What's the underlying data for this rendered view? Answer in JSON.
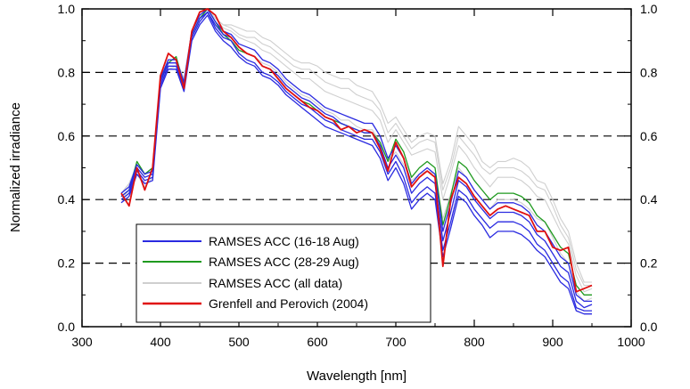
{
  "chart_data": {
    "type": "line",
    "title": "",
    "xlabel": "Wavelength [nm]",
    "ylabel": "Normalized irradiance",
    "xlim": [
      300,
      1000
    ],
    "ylim": [
      0.0,
      1.0
    ],
    "x_ticks": [
      "300",
      "400",
      "500",
      "600",
      "700",
      "800",
      "900",
      "1000"
    ],
    "y_ticks": [
      "0.0",
      "0.2",
      "0.4",
      "0.6",
      "0.8",
      "1.0"
    ],
    "right_axis_ticks": [
      "0.0",
      "0.2",
      "0.4",
      "0.6",
      "0.8",
      "1.0"
    ],
    "grid": "dashed horizontal at 0.2, 0.4, 0.6, 0.8",
    "legend_position": "bottom-left",
    "colors": {
      "blue": "#2a2ae0",
      "green": "#1f9a1f",
      "gray": "#cfcfcf",
      "red": "#e01010"
    },
    "legend": [
      {
        "label": "RAMSES ACC (16-18 Aug)",
        "color": "#2a2ae0"
      },
      {
        "label": "RAMSES ACC (28-29 Aug)",
        "color": "#1f9a1f"
      },
      {
        "label": "RAMSES ACC (all data)",
        "color": "#cfcfcf"
      },
      {
        "label": "Grenfell and Perovich (2004)",
        "color": "#e01010"
      }
    ],
    "x": [
      350,
      360,
      370,
      380,
      390,
      400,
      410,
      420,
      430,
      440,
      450,
      460,
      470,
      480,
      490,
      500,
      510,
      520,
      530,
      540,
      550,
      560,
      570,
      580,
      590,
      600,
      610,
      620,
      630,
      640,
      650,
      660,
      670,
      680,
      690,
      700,
      710,
      720,
      730,
      740,
      750,
      760,
      770,
      780,
      790,
      800,
      810,
      820,
      830,
      840,
      850,
      860,
      870,
      880,
      890,
      900,
      910,
      920,
      930,
      940,
      950
    ],
    "series": [
      {
        "group": "gray",
        "values": [
          0.42,
          0.45,
          0.51,
          0.48,
          0.5,
          0.78,
          0.84,
          0.84,
          0.78,
          0.93,
          0.98,
          1.0,
          0.97,
          0.95,
          0.95,
          0.94,
          0.93,
          0.93,
          0.91,
          0.9,
          0.88,
          0.86,
          0.84,
          0.83,
          0.83,
          0.82,
          0.8,
          0.79,
          0.78,
          0.78,
          0.76,
          0.75,
          0.74,
          0.7,
          0.64,
          0.66,
          0.62,
          0.58,
          0.6,
          0.61,
          0.6,
          0.45,
          0.52,
          0.63,
          0.6,
          0.57,
          0.52,
          0.5,
          0.52,
          0.52,
          0.53,
          0.52,
          0.5,
          0.46,
          0.45,
          0.4,
          0.34,
          0.3,
          0.2,
          0.14,
          0.14
        ]
      },
      {
        "group": "gray",
        "values": [
          0.42,
          0.45,
          0.51,
          0.48,
          0.5,
          0.78,
          0.84,
          0.84,
          0.78,
          0.93,
          0.98,
          1.0,
          0.97,
          0.94,
          0.93,
          0.91,
          0.9,
          0.89,
          0.87,
          0.86,
          0.84,
          0.82,
          0.8,
          0.78,
          0.78,
          0.76,
          0.74,
          0.73,
          0.72,
          0.71,
          0.7,
          0.69,
          0.68,
          0.65,
          0.58,
          0.62,
          0.58,
          0.54,
          0.55,
          0.56,
          0.55,
          0.4,
          0.48,
          0.57,
          0.54,
          0.5,
          0.47,
          0.44,
          0.47,
          0.47,
          0.47,
          0.46,
          0.44,
          0.41,
          0.4,
          0.35,
          0.3,
          0.26,
          0.16,
          0.11,
          0.12
        ]
      },
      {
        "group": "gray",
        "values": [
          0.42,
          0.45,
          0.51,
          0.48,
          0.5,
          0.78,
          0.84,
          0.84,
          0.78,
          0.93,
          0.98,
          1.0,
          0.97,
          0.95,
          0.94,
          0.92,
          0.91,
          0.91,
          0.89,
          0.88,
          0.86,
          0.84,
          0.82,
          0.81,
          0.81,
          0.79,
          0.77,
          0.76,
          0.75,
          0.75,
          0.73,
          0.72,
          0.71,
          0.68,
          0.61,
          0.64,
          0.6,
          0.56,
          0.58,
          0.59,
          0.58,
          0.43,
          0.5,
          0.6,
          0.57,
          0.54,
          0.5,
          0.48,
          0.5,
          0.5,
          0.5,
          0.49,
          0.47,
          0.44,
          0.43,
          0.38,
          0.32,
          0.28,
          0.18,
          0.13,
          0.13
        ]
      },
      {
        "group": "gray",
        "values": [
          0.4,
          0.43,
          0.48,
          0.44,
          0.47,
          0.76,
          0.81,
          0.82,
          0.76,
          0.92,
          0.97,
          0.99,
          0.95,
          0.92,
          0.9,
          0.88,
          0.86,
          0.85,
          0.83,
          0.82,
          0.8,
          0.77,
          0.75,
          0.73,
          0.72,
          0.7,
          0.68,
          0.67,
          0.65,
          0.65,
          0.63,
          0.62,
          0.62,
          0.58,
          0.52,
          0.55,
          0.51,
          0.46,
          0.48,
          0.49,
          0.48,
          0.34,
          0.42,
          0.5,
          0.47,
          0.43,
          0.4,
          0.37,
          0.4,
          0.4,
          0.4,
          0.39,
          0.37,
          0.34,
          0.33,
          0.28,
          0.23,
          0.2,
          0.11,
          0.08,
          0.09
        ]
      },
      {
        "group": "green",
        "values": [
          0.41,
          0.43,
          0.52,
          0.48,
          0.5,
          0.78,
          0.83,
          0.85,
          0.76,
          0.92,
          0.97,
          1.0,
          0.96,
          0.92,
          0.9,
          0.87,
          0.86,
          0.85,
          0.82,
          0.81,
          0.78,
          0.75,
          0.73,
          0.71,
          0.7,
          0.68,
          0.66,
          0.65,
          0.64,
          0.63,
          0.62,
          0.61,
          0.61,
          0.58,
          0.52,
          0.59,
          0.55,
          0.47,
          0.5,
          0.52,
          0.5,
          0.32,
          0.41,
          0.52,
          0.5,
          0.46,
          0.43,
          0.4,
          0.42,
          0.42,
          0.42,
          0.41,
          0.39,
          0.35,
          0.33,
          0.29,
          0.25,
          0.23,
          0.13,
          0.1,
          0.1
        ]
      },
      {
        "group": "blue",
        "values": [
          0.42,
          0.44,
          0.51,
          0.48,
          0.49,
          0.78,
          0.84,
          0.84,
          0.77,
          0.93,
          0.98,
          1.0,
          0.96,
          0.93,
          0.92,
          0.89,
          0.88,
          0.87,
          0.84,
          0.83,
          0.81,
          0.78,
          0.76,
          0.74,
          0.73,
          0.71,
          0.69,
          0.68,
          0.67,
          0.66,
          0.65,
          0.64,
          0.64,
          0.6,
          0.53,
          0.57,
          0.53,
          0.45,
          0.48,
          0.5,
          0.48,
          0.3,
          0.39,
          0.49,
          0.47,
          0.43,
          0.4,
          0.37,
          0.39,
          0.39,
          0.39,
          0.38,
          0.36,
          0.32,
          0.3,
          0.26,
          0.22,
          0.2,
          0.1,
          0.08,
          0.08
        ]
      },
      {
        "group": "blue",
        "values": [
          0.41,
          0.43,
          0.5,
          0.47,
          0.48,
          0.77,
          0.83,
          0.83,
          0.76,
          0.92,
          0.97,
          0.99,
          0.95,
          0.92,
          0.91,
          0.88,
          0.86,
          0.85,
          0.82,
          0.81,
          0.79,
          0.76,
          0.74,
          0.72,
          0.71,
          0.69,
          0.67,
          0.66,
          0.64,
          0.63,
          0.62,
          0.61,
          0.61,
          0.57,
          0.5,
          0.54,
          0.5,
          0.42,
          0.45,
          0.47,
          0.45,
          0.27,
          0.36,
          0.46,
          0.44,
          0.4,
          0.37,
          0.34,
          0.36,
          0.36,
          0.36,
          0.35,
          0.33,
          0.29,
          0.27,
          0.23,
          0.19,
          0.17,
          0.08,
          0.06,
          0.07
        ]
      },
      {
        "group": "blue",
        "values": [
          0.4,
          0.42,
          0.49,
          0.46,
          0.47,
          0.76,
          0.82,
          0.82,
          0.75,
          0.91,
          0.96,
          0.99,
          0.94,
          0.91,
          0.9,
          0.86,
          0.84,
          0.83,
          0.8,
          0.79,
          0.77,
          0.74,
          0.72,
          0.7,
          0.69,
          0.67,
          0.65,
          0.64,
          0.62,
          0.61,
          0.6,
          0.59,
          0.59,
          0.55,
          0.48,
          0.52,
          0.47,
          0.39,
          0.42,
          0.44,
          0.42,
          0.24,
          0.33,
          0.43,
          0.41,
          0.37,
          0.34,
          0.31,
          0.33,
          0.33,
          0.33,
          0.32,
          0.3,
          0.26,
          0.24,
          0.2,
          0.16,
          0.14,
          0.06,
          0.05,
          0.05
        ]
      },
      {
        "group": "blue",
        "values": [
          0.39,
          0.41,
          0.48,
          0.45,
          0.46,
          0.75,
          0.81,
          0.81,
          0.74,
          0.9,
          0.95,
          0.98,
          0.93,
          0.9,
          0.88,
          0.85,
          0.83,
          0.82,
          0.79,
          0.78,
          0.76,
          0.73,
          0.71,
          0.69,
          0.67,
          0.65,
          0.63,
          0.62,
          0.61,
          0.6,
          0.59,
          0.58,
          0.57,
          0.53,
          0.46,
          0.5,
          0.45,
          0.37,
          0.4,
          0.42,
          0.4,
          0.22,
          0.31,
          0.41,
          0.39,
          0.35,
          0.32,
          0.28,
          0.3,
          0.3,
          0.3,
          0.29,
          0.27,
          0.24,
          0.22,
          0.18,
          0.14,
          0.12,
          0.05,
          0.04,
          0.04
        ]
      },
      {
        "group": "red",
        "values": [
          0.42,
          0.38,
          0.5,
          0.43,
          0.5,
          0.79,
          0.86,
          0.84,
          0.75,
          0.93,
          0.99,
          1.0,
          0.98,
          0.93,
          0.91,
          0.88,
          0.86,
          0.85,
          0.82,
          0.81,
          0.78,
          0.75,
          0.73,
          0.71,
          0.69,
          0.68,
          0.66,
          0.65,
          0.62,
          0.63,
          0.61,
          0.62,
          0.61,
          0.56,
          0.49,
          0.58,
          0.53,
          0.44,
          0.47,
          0.49,
          0.47,
          0.19,
          0.4,
          0.47,
          0.45,
          0.41,
          0.38,
          0.35,
          0.37,
          0.38,
          0.37,
          0.36,
          0.35,
          0.3,
          0.3,
          0.25,
          0.24,
          0.25,
          0.11,
          0.12,
          0.13
        ]
      }
    ]
  }
}
